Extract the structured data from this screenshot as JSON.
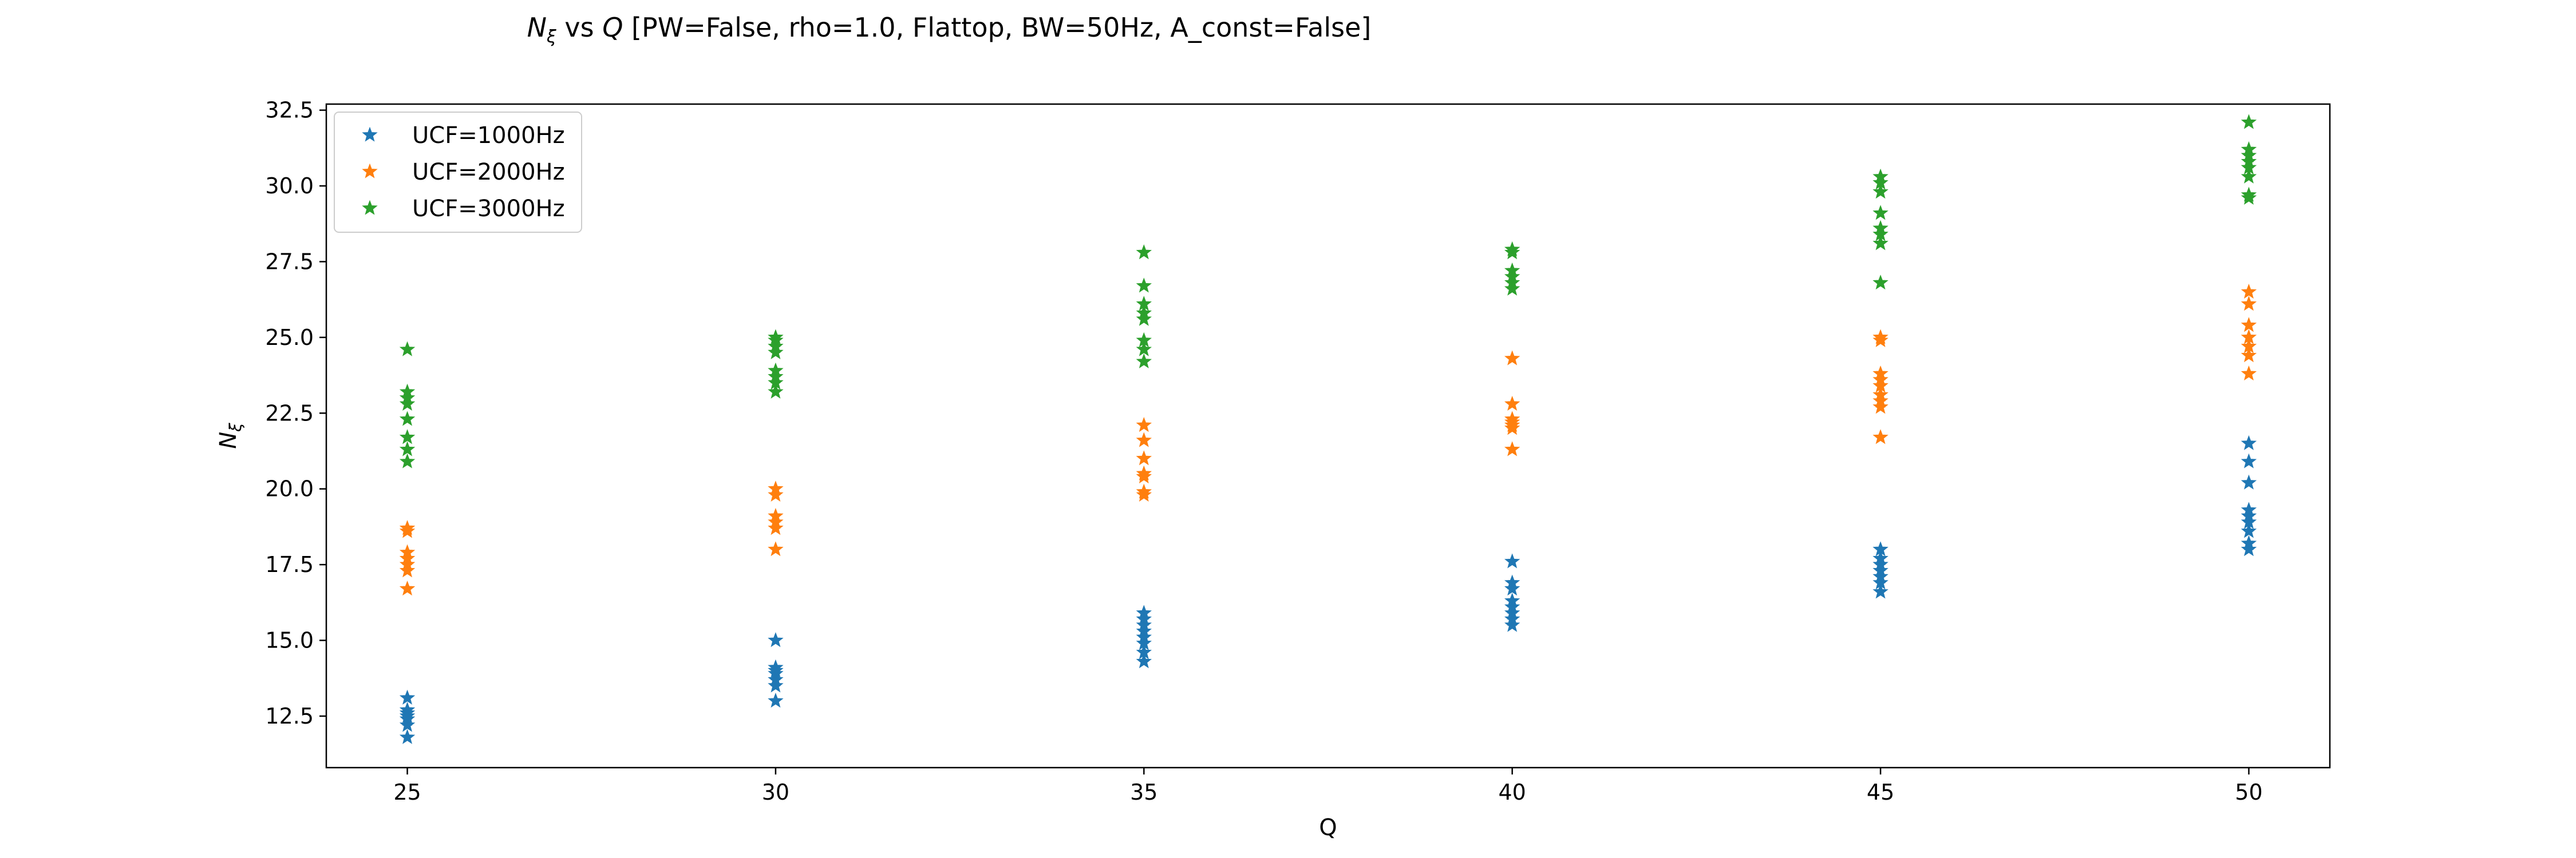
{
  "chart_data": {
    "type": "scatter",
    "title": {
      "prefix": "N",
      "prefix_sub": "ξ",
      "middle": " vs ",
      "q": "Q",
      "suffix": " [PW=False, rho=1.0, Flattop, BW=50Hz, A_const=False]"
    },
    "xlabel": "Q",
    "ylabel": {
      "main": "N",
      "sub": "ξ"
    },
    "xlim": [
      23.9,
      51.1
    ],
    "ylim": [
      10.8,
      32.7
    ],
    "xticks": [
      25,
      30,
      35,
      40,
      45,
      50
    ],
    "xtick_labels": [
      "25",
      "30",
      "35",
      "40",
      "45",
      "50"
    ],
    "yticks": [
      12.5,
      15.0,
      17.5,
      20.0,
      22.5,
      25.0,
      27.5,
      30.0,
      32.5
    ],
    "ytick_labels": [
      "12.5",
      "15.0",
      "17.5",
      "20.0",
      "22.5",
      "25.0",
      "27.5",
      "30.0",
      "32.5"
    ],
    "marker": "star",
    "legend_position": "top-left",
    "grid": false,
    "series": [
      {
        "name": "UCF=1000Hz",
        "color": "#1f77b4",
        "points": [
          [
            25,
            11.8
          ],
          [
            25,
            12.2
          ],
          [
            25,
            12.4
          ],
          [
            25,
            12.5
          ],
          [
            25,
            12.6
          ],
          [
            25,
            12.7
          ],
          [
            25,
            13.1
          ],
          [
            30,
            13.0
          ],
          [
            30,
            13.5
          ],
          [
            30,
            13.7
          ],
          [
            30,
            13.9
          ],
          [
            30,
            14.0
          ],
          [
            30,
            14.1
          ],
          [
            30,
            15.0
          ],
          [
            35,
            14.3
          ],
          [
            35,
            14.6
          ],
          [
            35,
            14.9
          ],
          [
            35,
            15.1
          ],
          [
            35,
            15.3
          ],
          [
            35,
            15.5
          ],
          [
            35,
            15.7
          ],
          [
            35,
            15.9
          ],
          [
            40,
            15.5
          ],
          [
            40,
            15.7
          ],
          [
            40,
            15.9
          ],
          [
            40,
            16.1
          ],
          [
            40,
            16.3
          ],
          [
            40,
            16.7
          ],
          [
            40,
            16.9
          ],
          [
            40,
            17.6
          ],
          [
            45,
            16.6
          ],
          [
            45,
            16.9
          ],
          [
            45,
            17.1
          ],
          [
            45,
            17.3
          ],
          [
            45,
            17.5
          ],
          [
            45,
            17.7
          ],
          [
            45,
            18.0
          ],
          [
            50,
            18.0
          ],
          [
            50,
            18.2
          ],
          [
            50,
            18.6
          ],
          [
            50,
            18.9
          ],
          [
            50,
            19.1
          ],
          [
            50,
            19.3
          ],
          [
            50,
            20.2
          ],
          [
            50,
            20.9
          ],
          [
            50,
            21.5
          ]
        ]
      },
      {
        "name": "UCF=2000Hz",
        "color": "#ff7f0e",
        "points": [
          [
            25,
            16.7
          ],
          [
            25,
            17.3
          ],
          [
            25,
            17.5
          ],
          [
            25,
            17.7
          ],
          [
            25,
            17.9
          ],
          [
            25,
            18.6
          ],
          [
            25,
            18.7
          ],
          [
            30,
            18.0
          ],
          [
            30,
            18.7
          ],
          [
            30,
            18.9
          ],
          [
            30,
            19.1
          ],
          [
            30,
            19.8
          ],
          [
            30,
            20.0
          ],
          [
            35,
            19.8
          ],
          [
            35,
            19.9
          ],
          [
            35,
            20.4
          ],
          [
            35,
            20.5
          ],
          [
            35,
            21.0
          ],
          [
            35,
            21.6
          ],
          [
            35,
            22.1
          ],
          [
            40,
            21.3
          ],
          [
            40,
            22.0
          ],
          [
            40,
            22.1
          ],
          [
            40,
            22.2
          ],
          [
            40,
            22.3
          ],
          [
            40,
            22.8
          ],
          [
            40,
            24.3
          ],
          [
            45,
            21.7
          ],
          [
            45,
            22.7
          ],
          [
            45,
            22.9
          ],
          [
            45,
            23.1
          ],
          [
            45,
            23.4
          ],
          [
            45,
            23.6
          ],
          [
            45,
            23.8
          ],
          [
            45,
            24.9
          ],
          [
            45,
            25.0
          ],
          [
            50,
            23.8
          ],
          [
            50,
            24.4
          ],
          [
            50,
            24.7
          ],
          [
            50,
            25.0
          ],
          [
            50,
            25.4
          ],
          [
            50,
            26.1
          ],
          [
            50,
            26.5
          ]
        ]
      },
      {
        "name": "UCF=3000Hz",
        "color": "#2ca02c",
        "points": [
          [
            25,
            20.9
          ],
          [
            25,
            21.3
          ],
          [
            25,
            21.7
          ],
          [
            25,
            22.3
          ],
          [
            25,
            22.8
          ],
          [
            25,
            23.0
          ],
          [
            25,
            23.2
          ],
          [
            25,
            24.6
          ],
          [
            30,
            23.2
          ],
          [
            30,
            23.5
          ],
          [
            30,
            23.7
          ],
          [
            30,
            23.9
          ],
          [
            30,
            24.5
          ],
          [
            30,
            24.7
          ],
          [
            30,
            24.9
          ],
          [
            30,
            25.0
          ],
          [
            35,
            24.2
          ],
          [
            35,
            24.6
          ],
          [
            35,
            24.9
          ],
          [
            35,
            25.6
          ],
          [
            35,
            25.8
          ],
          [
            35,
            26.1
          ],
          [
            35,
            26.7
          ],
          [
            35,
            27.8
          ],
          [
            40,
            26.6
          ],
          [
            40,
            26.8
          ],
          [
            40,
            27.0
          ],
          [
            40,
            27.2
          ],
          [
            40,
            27.8
          ],
          [
            40,
            27.9
          ],
          [
            45,
            26.8
          ],
          [
            45,
            28.1
          ],
          [
            45,
            28.4
          ],
          [
            45,
            28.6
          ],
          [
            45,
            29.1
          ],
          [
            45,
            29.8
          ],
          [
            45,
            30.1
          ],
          [
            45,
            30.3
          ],
          [
            50,
            29.6
          ],
          [
            50,
            29.7
          ],
          [
            50,
            30.3
          ],
          [
            50,
            30.6
          ],
          [
            50,
            30.8
          ],
          [
            50,
            31.0
          ],
          [
            50,
            31.2
          ],
          [
            50,
            32.1
          ]
        ]
      }
    ]
  }
}
